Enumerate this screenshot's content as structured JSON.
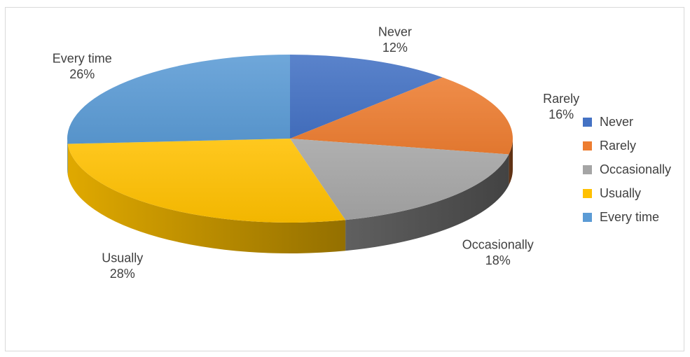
{
  "chart_data": {
    "type": "pie",
    "style": "3d",
    "title": "",
    "categories": [
      "Never",
      "Rarely",
      "Occasionally",
      "Usually",
      "Every time"
    ],
    "values": [
      12,
      16,
      18,
      28,
      26
    ],
    "value_labels": [
      "12%",
      "16%",
      "18%",
      "28%",
      "26%"
    ],
    "colors": [
      "#4472c4",
      "#ed7d31",
      "#a5a5a5",
      "#ffc000",
      "#5b9bd5"
    ],
    "legend": {
      "position": "right",
      "entries": [
        "Never",
        "Rarely",
        "Occasionally",
        "Usually",
        "Every time"
      ]
    }
  }
}
